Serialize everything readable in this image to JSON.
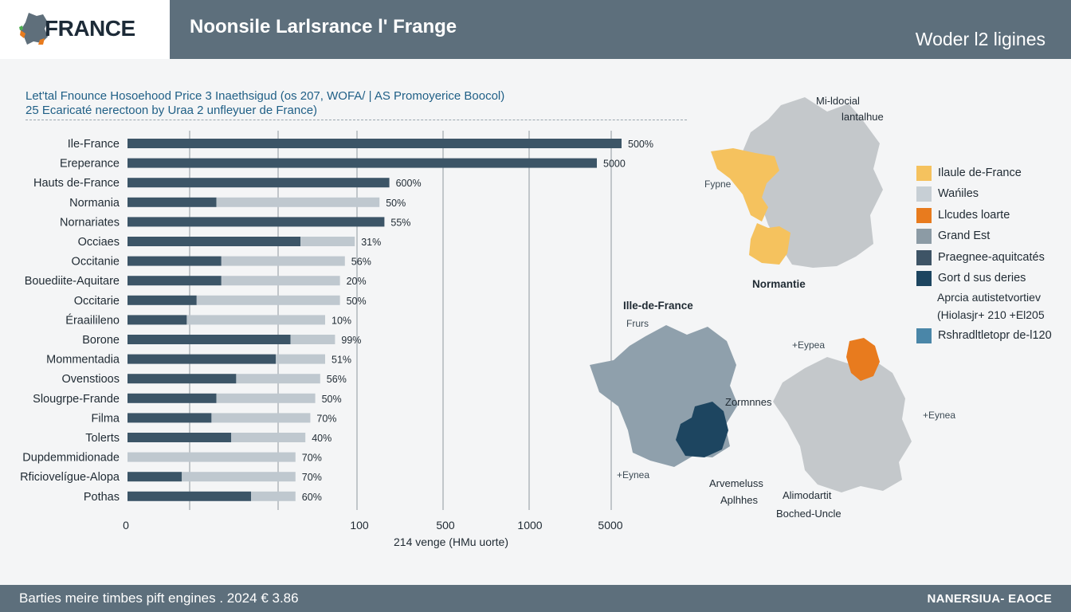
{
  "header": {
    "logo_text": "FRANCE",
    "title": "Noonsile Larlsrance l' Frange",
    "right_text": "Woder l2 ligines"
  },
  "subtitle": {
    "line1": "Let'tal Fnounce Hosoehood Price 3 Inaethsigud (os 207, WOFA/ | AS Promoyerice Boocol)",
    "line2": "25 Ecaricaté nerectoon by Uraa 2 unfleyuer de France)"
  },
  "chart_data": {
    "type": "bar",
    "orientation": "horizontal",
    "xlabel": "214 venge (HMu uorte)",
    "x_ticks": [
      "0",
      "100",
      "500",
      "1000",
      "5000"
    ],
    "categories": [
      "Ile-France",
      "Ereperance",
      "Hauts de-France",
      "Normania",
      "Nornariates",
      "Occiaes",
      "Occitanie",
      "Bouediite-Aquitare",
      "Occitarie",
      "Éraailileno",
      "Borone",
      "Mommentadia",
      "Ovenstioos",
      "Slougrpe-Frande",
      "Filma",
      "Tolerts",
      "Dupdemmidionade",
      "Rficiovelígue-Alopa",
      "Pothas"
    ],
    "series": [
      {
        "values": [
          1000,
          950,
          530,
          180,
          520,
          350,
          190,
          190,
          140,
          120,
          330,
          300,
          220,
          180,
          170,
          210,
          0,
          110,
          250
        ]
      },
      {
        "values": [
          0,
          0,
          0,
          330,
          0,
          110,
          250,
          240,
          290,
          280,
          90,
          100,
          170,
          200,
          200,
          150,
          340,
          230,
          90
        ]
      }
    ],
    "labels": [
      "500%",
      "5000",
      "600%",
      "50%",
      "55%",
      "31%",
      "56%",
      "20%",
      "50%",
      "10%",
      "99%",
      "51%",
      "56%",
      "50%",
      "70%",
      "40%",
      "70%",
      "70%",
      "60%"
    ],
    "colors": {
      "primary": "#3c5567",
      "secondary": "#bfc8cf"
    },
    "xlim": [
      0,
      1000
    ],
    "grid": true
  },
  "legend": {
    "items": [
      {
        "label": "Ilaule de-France",
        "color": "#f5c25e"
      },
      {
        "label": "Wańiles",
        "color": "#c7cfd5"
      },
      {
        "label": "Llcudes loarte",
        "color": "#e87b1e"
      },
      {
        "label": "Grand Est",
        "color": "#8c9ba5"
      },
      {
        "label": "Praegnee-aquitcatés",
        "color": "#3e5466"
      },
      {
        "label": "Gort d sus deries",
        "color": "#1d4560"
      }
    ],
    "note_line1": "Aprcia autistetvortiev",
    "note_line2": "(Hiolasjr+ 210 +El205",
    "last_item": {
      "label": "Rshradltletopr de-l120",
      "color": "#4a86a8"
    }
  },
  "maps": {
    "map1_top": "Mi-ldocial",
    "map1_top2": "lantalhue",
    "map1_left": "Fypne",
    "map1_bottom": "Normantie",
    "map2_title": "Ille-de-France",
    "map2_sub": "Frurs",
    "map2_right": "Zormnnes",
    "map2_bottom": "+Eynea",
    "map3_top": "+Eypea",
    "map3_right": "+Eynea",
    "map3_bottom_left1": "Arvemeluss",
    "map3_bottom_left2": "Aplhhes",
    "map3_bottom1": "Alimodartit",
    "map3_bottom2": "Boched-Uncle"
  },
  "footer": {
    "left": "Barties meire timbes pift engines . 2024 € 3.86",
    "right": "NANERSIUA- EAOCE"
  }
}
